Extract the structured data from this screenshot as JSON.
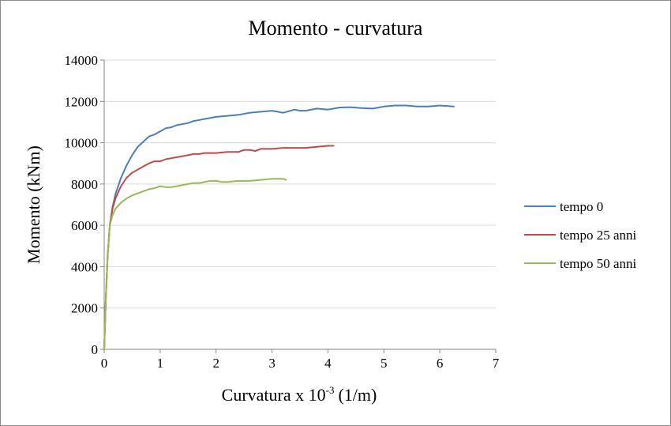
{
  "chart_data": {
    "type": "line",
    "title": "Momento - curvatura",
    "xlabel": "Curvatura x 10",
    "xlabel_exponent": "-3",
    "xlabel_unit": "(1/m)",
    "ylabel": "Momento (kNm)",
    "xlim": [
      0,
      7
    ],
    "ylim": [
      0,
      14000
    ],
    "x_ticks": [
      "0",
      "1",
      "2",
      "3",
      "4",
      "5",
      "6",
      "7"
    ],
    "y_ticks": [
      "0",
      "2000",
      "4000",
      "6000",
      "8000",
      "10000",
      "12000",
      "14000"
    ],
    "grid": "horizontal",
    "legend_position": "right",
    "series": [
      {
        "name": "tempo 0",
        "color": "#4a7ebb",
        "x": [
          0,
          0.03,
          0.06,
          0.1,
          0.15,
          0.2,
          0.3,
          0.4,
          0.5,
          0.6,
          0.7,
          0.8,
          0.9,
          1.0,
          1.1,
          1.2,
          1.3,
          1.4,
          1.5,
          1.6,
          1.7,
          1.8,
          1.9,
          2.0,
          2.2,
          2.4,
          2.6,
          2.8,
          3.0,
          3.1,
          3.2,
          3.4,
          3.5,
          3.6,
          3.8,
          4.0,
          4.2,
          4.4,
          4.6,
          4.8,
          5.0,
          5.2,
          5.4,
          5.6,
          5.8,
          6.0,
          6.1,
          6.25
        ],
        "y": [
          0,
          2500,
          4500,
          6000,
          6900,
          7500,
          8300,
          8900,
          9400,
          9800,
          10050,
          10300,
          10400,
          10550,
          10700,
          10750,
          10850,
          10900,
          10950,
          11050,
          11100,
          11150,
          11200,
          11250,
          11300,
          11350,
          11450,
          11500,
          11550,
          11500,
          11450,
          11600,
          11550,
          11550,
          11650,
          11600,
          11700,
          11720,
          11680,
          11650,
          11750,
          11800,
          11800,
          11750,
          11750,
          11800,
          11780,
          11750
        ]
      },
      {
        "name": "tempo 25 anni",
        "color": "#be4b48",
        "x": [
          0,
          0.03,
          0.06,
          0.1,
          0.15,
          0.2,
          0.3,
          0.4,
          0.5,
          0.6,
          0.7,
          0.8,
          0.9,
          1.0,
          1.1,
          1.2,
          1.3,
          1.4,
          1.5,
          1.6,
          1.7,
          1.8,
          2.0,
          2.2,
          2.4,
          2.5,
          2.6,
          2.7,
          2.8,
          3.0,
          3.2,
          3.4,
          3.6,
          3.8,
          4.0,
          4.1
        ],
        "y": [
          0,
          2500,
          4500,
          6000,
          6800,
          7300,
          7900,
          8300,
          8550,
          8700,
          8850,
          9000,
          9100,
          9100,
          9200,
          9250,
          9300,
          9350,
          9400,
          9450,
          9450,
          9500,
          9500,
          9550,
          9550,
          9650,
          9650,
          9600,
          9700,
          9700,
          9750,
          9750,
          9750,
          9800,
          9850,
          9850
        ]
      },
      {
        "name": "tempo 50 anni",
        "color": "#98b954",
        "x": [
          0,
          0.03,
          0.06,
          0.1,
          0.15,
          0.2,
          0.3,
          0.4,
          0.5,
          0.6,
          0.7,
          0.8,
          0.9,
          1.0,
          1.1,
          1.2,
          1.3,
          1.4,
          1.5,
          1.6,
          1.7,
          1.8,
          1.9,
          2.0,
          2.1,
          2.2,
          2.4,
          2.6,
          2.8,
          3.0,
          3.1,
          3.2,
          3.25
        ],
        "y": [
          0,
          2500,
          4500,
          6000,
          6500,
          6800,
          7100,
          7300,
          7450,
          7550,
          7650,
          7750,
          7800,
          7900,
          7850,
          7850,
          7900,
          7950,
          8000,
          8050,
          8050,
          8100,
          8150,
          8150,
          8100,
          8100,
          8150,
          8150,
          8200,
          8250,
          8250,
          8250,
          8200
        ]
      }
    ]
  }
}
